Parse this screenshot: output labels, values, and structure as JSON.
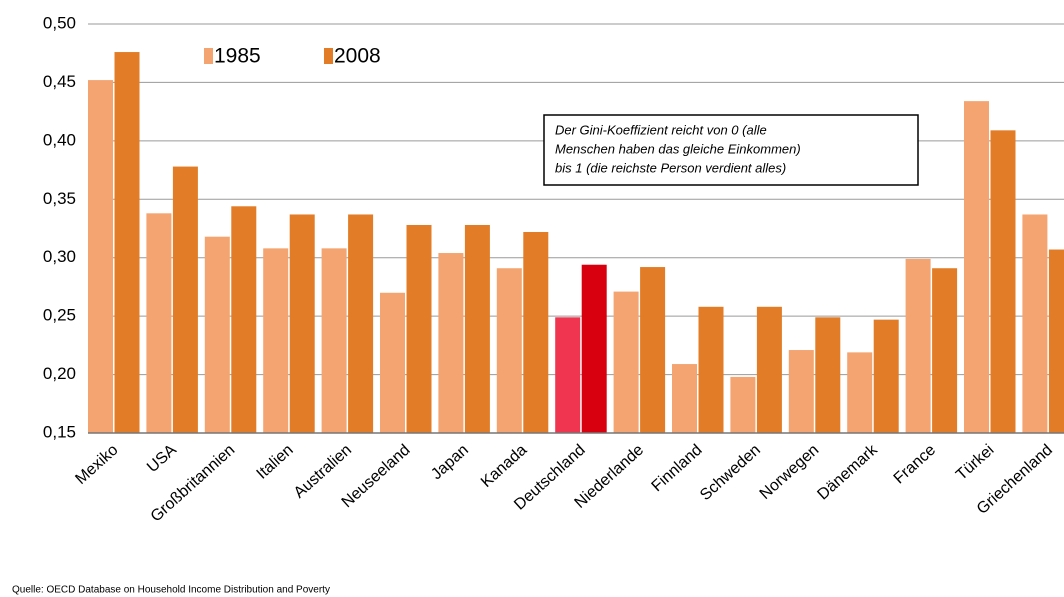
{
  "chart_data": {
    "type": "bar",
    "categories": [
      "Mexiko",
      "USA",
      "Großbritannien",
      "Italien",
      "Australien",
      "Neuseeland",
      "Japan",
      "Kanada",
      "Deutschland",
      "Niederlande",
      "Finnland",
      "Schweden",
      "Norwegen",
      "Dänemark",
      "France",
      "Türkei",
      "Griechenland"
    ],
    "series": [
      {
        "name": "1985",
        "color": "#f4a470",
        "highlight_color": "#ef3550",
        "values": [
          0.452,
          0.338,
          0.318,
          0.308,
          0.308,
          0.27,
          0.304,
          0.291,
          0.249,
          0.271,
          0.209,
          0.198,
          0.221,
          0.219,
          0.299,
          0.434,
          0.337
        ]
      },
      {
        "name": "2008",
        "color": "#e27c26",
        "highlight_color": "#d8000e",
        "values": [
          0.476,
          0.378,
          0.344,
          0.337,
          0.337,
          0.328,
          0.328,
          0.322,
          0.294,
          0.292,
          0.258,
          0.258,
          0.249,
          0.247,
          0.291,
          0.409,
          0.307
        ]
      }
    ],
    "highlight_category": "Deutschland",
    "ylim": [
      0.15,
      0.5
    ],
    "yticks": [
      {
        "value": 0.15,
        "label": "0,15"
      },
      {
        "value": 0.2,
        "label": "0,20"
      },
      {
        "value": 0.25,
        "label": "0,25"
      },
      {
        "value": 0.3,
        "label": "0,30"
      },
      {
        "value": 0.35,
        "label": "0,35"
      },
      {
        "value": 0.4,
        "label": "0,40"
      },
      {
        "value": 0.45,
        "label": "0,45"
      },
      {
        "value": 0.5,
        "label": "0,50"
      }
    ],
    "grid": true,
    "annotation": [
      "Der Gini-Koeffizient reicht von 0 (alle",
      "Menschen haben das gleiche Einkommen)",
      "bis 1 (die reichste Person verdient alles)"
    ],
    "source": "Quelle: OECD Database on Household Income Distribution and Poverty"
  }
}
